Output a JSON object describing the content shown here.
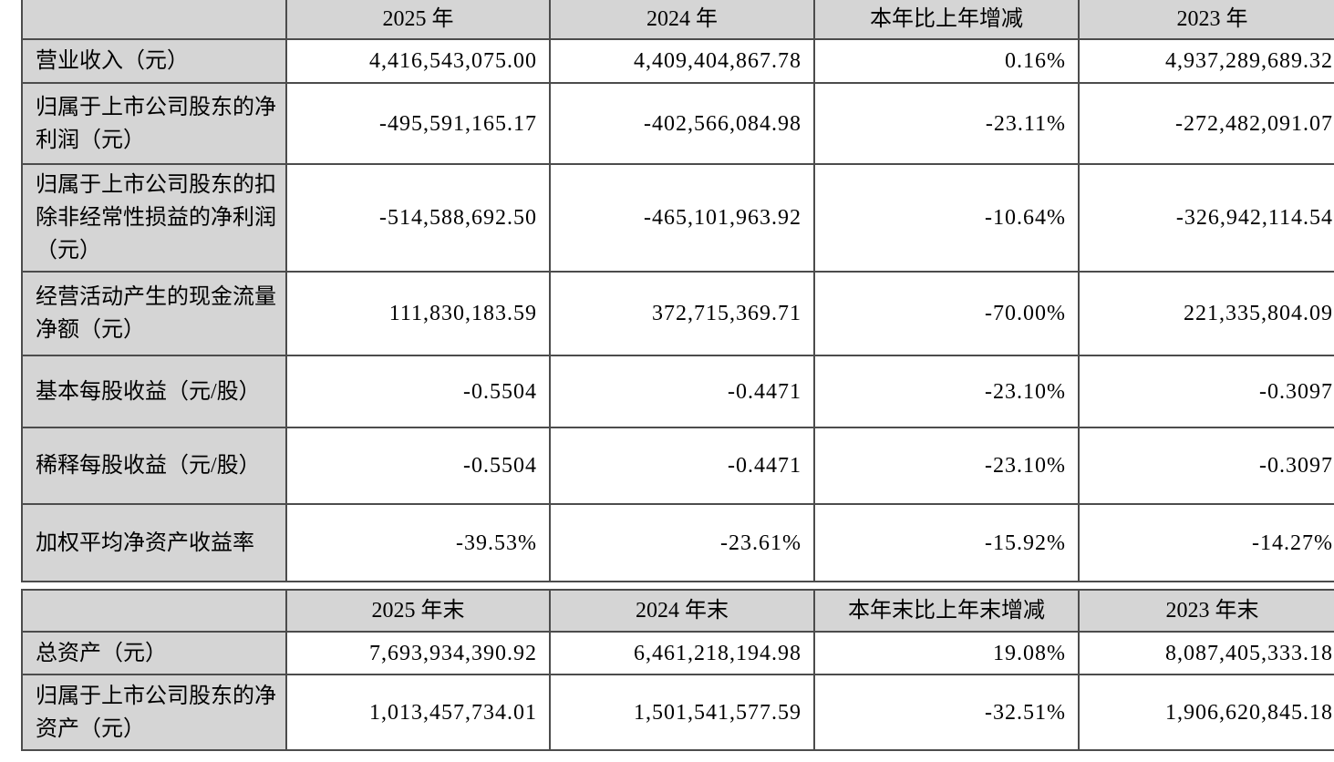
{
  "colors": {
    "cell_gray": "#d5d5d5",
    "grid_border": "#4c4c4c",
    "background": "#ffffff",
    "text": "#000000"
  },
  "table1": {
    "header": [
      "",
      "2025 年",
      "2024 年",
      "本年比上年增减",
      "2023 年"
    ],
    "rows": [
      {
        "label": "营业收入（元）",
        "values": [
          "4,416,543,075.00",
          "4,409,404,867.78",
          "0.16%",
          "4,937,289,689.32"
        ]
      },
      {
        "label": "归属于上市公司股东的净利润（元）",
        "values": [
          "-495,591,165.17",
          "-402,566,084.98",
          "-23.11%",
          "-272,482,091.07"
        ]
      },
      {
        "label": "归属于上市公司股东的扣除非经常性损益的净利润（元）",
        "values": [
          "-514,588,692.50",
          "-465,101,963.92",
          "-10.64%",
          "-326,942,114.54"
        ]
      },
      {
        "label": "经营活动产生的现金流量净额（元）",
        "values": [
          "111,830,183.59",
          "372,715,369.71",
          "-70.00%",
          "221,335,804.09"
        ]
      },
      {
        "label": "基本每股收益（元/股）",
        "values": [
          "-0.5504",
          "-0.4471",
          "-23.10%",
          "-0.3097"
        ]
      },
      {
        "label": "稀释每股收益（元/股）",
        "values": [
          "-0.5504",
          "-0.4471",
          "-23.10%",
          "-0.3097"
        ]
      },
      {
        "label": "加权平均净资产收益率",
        "values": [
          "-39.53%",
          "-23.61%",
          "-15.92%",
          "-14.27%"
        ]
      }
    ]
  },
  "table2": {
    "header": [
      "",
      "2025 年末",
      "2024 年末",
      "本年末比上年末增减",
      "2023 年末"
    ],
    "rows": [
      {
        "label": "总资产（元）",
        "values": [
          "7,693,934,390.92",
          "6,461,218,194.98",
          "19.08%",
          "8,087,405,333.18"
        ]
      },
      {
        "label": "归属于上市公司股东的净资产（元）",
        "values": [
          "1,013,457,734.01",
          "1,501,541,577.59",
          "-32.51%",
          "1,906,620,845.18"
        ]
      }
    ]
  }
}
